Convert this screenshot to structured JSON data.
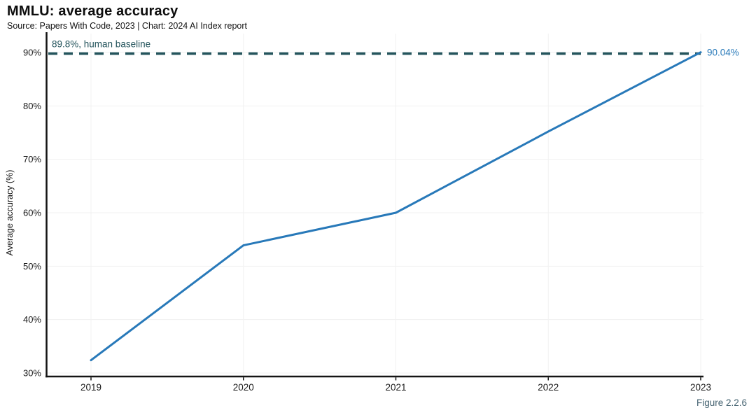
{
  "chart_data": {
    "type": "line",
    "title": "MMLU: average accuracy",
    "source": "Source: Papers With Code, 2023 | Chart: 2024 AI Index report",
    "xlabel": "",
    "ylabel": "Average accuracy (%)",
    "x": [
      2019,
      2020,
      2021,
      2022,
      2023
    ],
    "series": [
      {
        "name": "MMLU average accuracy",
        "values": [
          32.4,
          53.9,
          60.0,
          75.2,
          90.04
        ],
        "color": "#2879b9"
      }
    ],
    "ylim": [
      30,
      90
    ],
    "y_ticks": [
      30,
      40,
      50,
      60,
      70,
      80,
      90
    ],
    "y_tick_suffix": "%",
    "grid": true,
    "legend_position": "none",
    "baseline": {
      "value": 89.8,
      "label": "89.8%, human baseline",
      "color": "#24545c",
      "style": "dashed"
    },
    "end_label": {
      "text": "90.04%",
      "color": "#2879b9"
    },
    "figure_label": "Figure 2.2.6",
    "colors": {
      "axis": "#141414",
      "grid": "#f1f1f1",
      "tick_text": "#1a1a1a",
      "figure_label": "#456371"
    }
  }
}
